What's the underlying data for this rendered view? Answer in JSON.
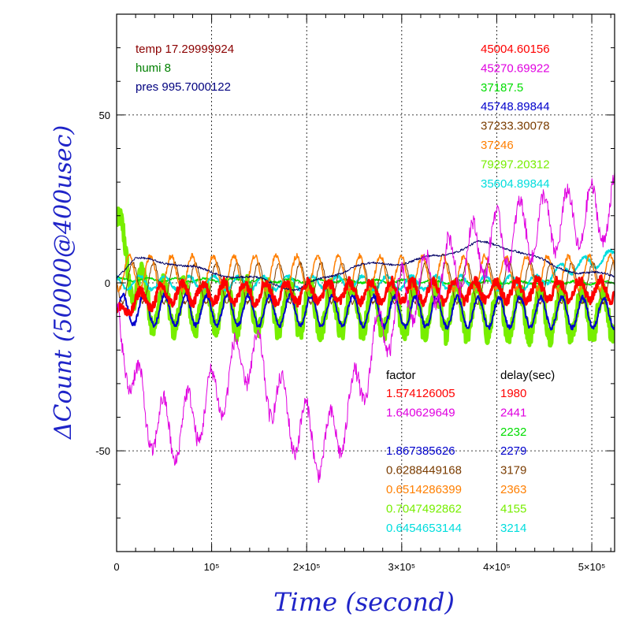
{
  "chart_data": {
    "type": "line",
    "xlabel": "Time (second)",
    "ylabel": "ΔCount (50000@400usec)",
    "xlim": [
      0,
      524000
    ],
    "ylim": [
      -80,
      80
    ],
    "x_ticks": [
      {
        "value": 0,
        "label": "0"
      },
      {
        "value": 100000,
        "label": "10⁵"
      },
      {
        "value": 200000,
        "label": "2×10⁵"
      },
      {
        "value": 300000,
        "label": "3×10⁵"
      },
      {
        "value": 400000,
        "label": "4×10⁵"
      },
      {
        "value": 500000,
        "label": "5×10⁵"
      }
    ],
    "y_ticks": [
      {
        "value": 50,
        "label": "50"
      },
      {
        "value": 0,
        "label": "0"
      },
      {
        "value": -50,
        "label": "-50"
      }
    ],
    "grid": true,
    "env_labels": [
      {
        "text": "temp 17.29999924",
        "color": "#8b0000"
      },
      {
        "text": "humi 8",
        "color": "#008000"
      },
      {
        "text": "pres 995.7000122",
        "color": "#00007f"
      }
    ],
    "means": [
      {
        "text": "45004.60156",
        "color": "#ff0000"
      },
      {
        "text": "45270.69922",
        "color": "#e000e0"
      },
      {
        "text": "37187.5",
        "color": "#00dd00"
      },
      {
        "text": "45748.89844",
        "color": "#0000cc"
      },
      {
        "text": "37233.30078",
        "color": "#7a3c00"
      },
      {
        "text": "37246",
        "color": "#ff7f00"
      },
      {
        "text": "79297.20312",
        "color": "#77ee00"
      },
      {
        "text": "35604.89844",
        "color": "#00dddd"
      }
    ],
    "factor_header": "factor",
    "delay_header": "delay(sec)",
    "factors": [
      {
        "factor": "1.574126005",
        "delay": "1980",
        "color": "#ff0000"
      },
      {
        "factor": "1.640629649",
        "delay": "2441",
        "color": "#e000e0"
      },
      {
        "factor": "",
        "delay": "2232",
        "color": "#00dd00"
      },
      {
        "factor": "1.867385626",
        "delay": "2279",
        "color": "#0000cc"
      },
      {
        "factor": "0.6288449168",
        "delay": "3179",
        "color": "#7a3c00"
      },
      {
        "factor": "0.6514286399",
        "delay": "2363",
        "color": "#ff7f00"
      },
      {
        "factor": "0.7047492862",
        "delay": "4155",
        "color": "#77ee00"
      },
      {
        "factor": "0.6454653144",
        "delay": "3214",
        "color": "#00dddd"
      }
    ],
    "series": [
      {
        "color": "#77ee00",
        "period": 22000,
        "amp": 7,
        "offset": -4,
        "noise": 3,
        "width": 5,
        "points": [
          [
            0,
            22
          ],
          [
            8000,
            12
          ],
          [
            20000,
            3
          ],
          [
            40000,
            -3
          ],
          [
            524000,
            -5
          ]
        ]
      },
      {
        "color": "#00dd00",
        "period": 30000,
        "amp": 0.5,
        "offset": 0,
        "noise": 0.3,
        "width": 1.5,
        "points": [
          [
            0,
            1
          ],
          [
            524000,
            0
          ]
        ]
      },
      {
        "color": "#00dddd",
        "period": 26000,
        "amp": 2,
        "offset": 0,
        "noise": 0.5,
        "width": 2,
        "points": [
          [
            0,
            0
          ],
          [
            440000,
            0
          ],
          [
            470000,
            4
          ],
          [
            524000,
            8
          ]
        ]
      },
      {
        "color": "#7a3c00",
        "period": 22000,
        "amp": 6,
        "offset": 0,
        "noise": 0.5,
        "width": 1,
        "points": [
          [
            0,
            0
          ],
          [
            524000,
            0
          ]
        ]
      },
      {
        "color": "#ff7f00",
        "period": 22000,
        "amp": 5,
        "offset": 1,
        "noise": 0.8,
        "width": 1.5,
        "points": [
          [
            0,
            2
          ],
          [
            524000,
            2
          ]
        ]
      },
      {
        "color": "#000066",
        "period": 60000,
        "amp": 0.6,
        "offset": 0,
        "noise": 0.3,
        "width": 1,
        "points": [
          [
            0,
            2
          ],
          [
            20000,
            7
          ],
          [
            60000,
            6
          ],
          [
            100000,
            3
          ],
          [
            150000,
            1
          ],
          [
            190000,
            -2
          ],
          [
            250000,
            5
          ],
          [
            300000,
            6
          ],
          [
            340000,
            8
          ],
          [
            380000,
            12
          ],
          [
            420000,
            10
          ],
          [
            460000,
            5
          ],
          [
            490000,
            3
          ],
          [
            524000,
            2
          ]
        ]
      },
      {
        "color": "#0000cc",
        "period": 22000,
        "amp": 4.5,
        "offset": -5,
        "noise": 0.7,
        "width": 2,
        "points": [
          [
            0,
            -3
          ],
          [
            524000,
            -4
          ]
        ]
      },
      {
        "color": "#ff0000",
        "period": 22000,
        "amp": 3,
        "offset": -1,
        "noise": 1.5,
        "width": 3,
        "points": [
          [
            0,
            -10
          ],
          [
            15000,
            -5
          ],
          [
            60000,
            -2
          ],
          [
            524000,
            -1
          ]
        ]
      },
      {
        "color": "#e000e0",
        "period": 25000,
        "amp": 9,
        "offset": 0,
        "noise": 2.5,
        "width": 1,
        "points": [
          [
            0,
            -15
          ],
          [
            10000,
            -20
          ],
          [
            30000,
            -40
          ],
          [
            60000,
            -45
          ],
          [
            100000,
            -35
          ],
          [
            140000,
            -20
          ],
          [
            180000,
            -40
          ],
          [
            220000,
            -50
          ],
          [
            250000,
            -35
          ],
          [
            270000,
            -20
          ],
          [
            300000,
            -5
          ],
          [
            340000,
            3
          ],
          [
            380000,
            10
          ],
          [
            420000,
            15
          ],
          [
            460000,
            18
          ],
          [
            500000,
            20
          ],
          [
            524000,
            22
          ]
        ]
      }
    ]
  }
}
